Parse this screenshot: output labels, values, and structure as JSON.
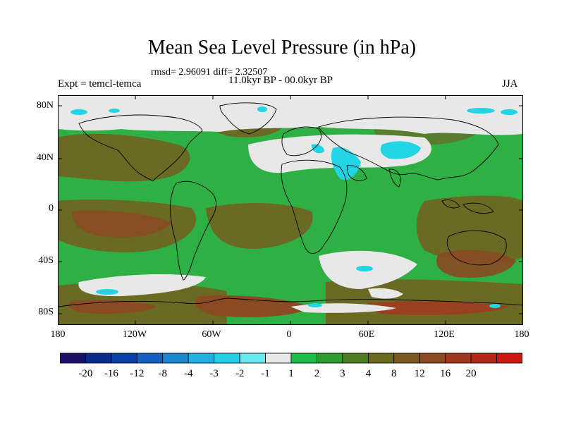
{
  "title": "Mean Sea Level Pressure (in hPa)",
  "stats_text": "rmsd= 2.96091 diff= 2.32507",
  "experiment_text": "Expt = temcl-temca",
  "period_text": "11.0kyr BP - 00.0kyr BP",
  "season_text": "JJA",
  "lat_labels": [
    "80N",
    "40N",
    "0",
    "40S",
    "80S"
  ],
  "lon_labels": [
    "180",
    "120W",
    "60W",
    "0",
    "60E",
    "120E",
    "180"
  ],
  "colorbar": {
    "colors": [
      "#1a1066",
      "#0b2b8c",
      "#0a3fa3",
      "#1460c0",
      "#1c86cc",
      "#22aee0",
      "#22cfe6",
      "#6ae8f0",
      "#e8e8e8",
      "#1ebc48",
      "#2f9c30",
      "#4f7e22",
      "#6b6a1e",
      "#7a5a20",
      "#8a4a22",
      "#a0381e",
      "#b4281a",
      "#cc1810"
    ],
    "tick_labels": [
      "-20",
      "-16",
      "-12",
      "-8",
      "-4",
      "-3",
      "-2",
      "-1",
      "1",
      "2",
      "3",
      "4",
      "8",
      "12",
      "16",
      "20"
    ]
  },
  "colors": {
    "ocean_base": "#2fb044",
    "land_base": "#1ebc48",
    "positive_dark": "#6a6a24",
    "positive_warm": "#8a4a22",
    "near_zero": "#e8e8e8",
    "negative_light": "#22d4e4",
    "coastline": "#000000"
  }
}
